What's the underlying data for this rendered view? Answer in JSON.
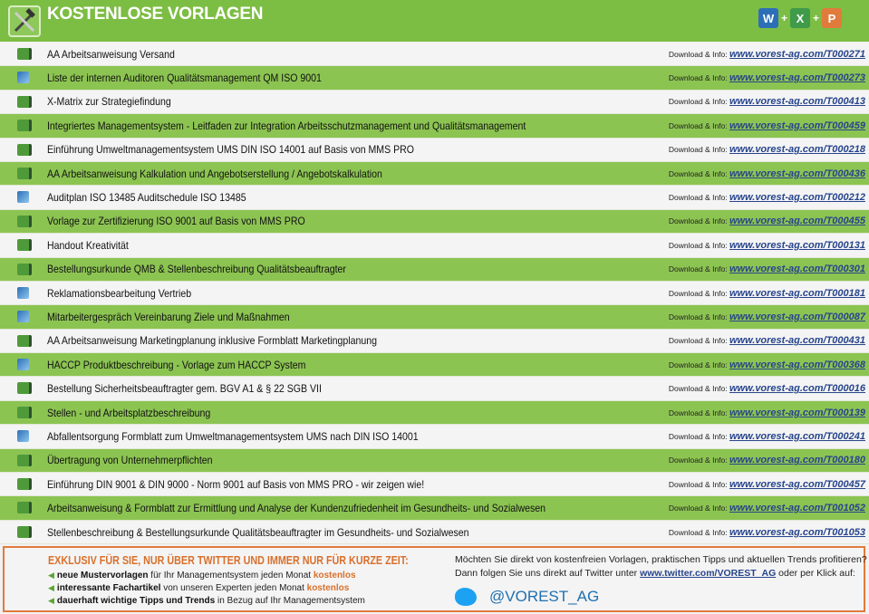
{
  "header": {
    "title": "KOSTENLOSE VORLAGEN",
    "logo_icon": "tools-icon",
    "apps": [
      {
        "icon": "word-icon",
        "letter": "W",
        "color": "#2c6fb7"
      },
      {
        "icon": "excel-icon",
        "letter": "X",
        "color": "#3f9a4a"
      },
      {
        "icon": "powerpoint-icon",
        "letter": "P",
        "color": "#e07b3c"
      }
    ],
    "plus": "+"
  },
  "download_label": "Download & Info:",
  "rows": [
    {
      "name": "AA Arbeitsanweisung Versand",
      "url": "www.vorest-ag.com/T000271",
      "icon": "xls"
    },
    {
      "name": "Liste der internen Auditoren Qualitätsmanagement QM ISO 9001",
      "url": "www.vorest-ag.com/T000273",
      "icon": "doc"
    },
    {
      "name": "X-Matrix zur Strategiefindung",
      "url": "www.vorest-ag.com/T000413",
      "icon": "xls"
    },
    {
      "name": "Integriertes Managementsystem - Leitfaden zur Integration Arbeitsschutzmanagement und Qualitätsmanagement",
      "url": "www.vorest-ag.com/T000459",
      "icon": "xls"
    },
    {
      "name": "Einführung Umweltmanagementsystem UMS DIN ISO 14001 auf Basis von MMS PRO",
      "url": "www.vorest-ag.com/T000218",
      "icon": "xls"
    },
    {
      "name": "AA Arbeitsanweisung Kalkulation und Angebotserstellung / Angebotskalkulation",
      "url": "www.vorest-ag.com/T000436",
      "icon": "xls"
    },
    {
      "name": "Auditplan ISO 13485 Auditschedule ISO 13485",
      "url": "www.vorest-ag.com/T000212",
      "icon": "doc"
    },
    {
      "name": "Vorlage zur Zertifizierung ISO 9001 auf Basis von MMS PRO",
      "url": "www.vorest-ag.com/T000455",
      "icon": "xls"
    },
    {
      "name": "Handout Kreativität",
      "url": "www.vorest-ag.com/T000131",
      "icon": "xls"
    },
    {
      "name": "Bestellungsurkunde QMB & Stellenbeschreibung Qualitätsbeauftragter",
      "url": "www.vorest-ag.com/T000301",
      "icon": "xls"
    },
    {
      "name": "Reklamationsbearbeitung Vertrieb",
      "url": "www.vorest-ag.com/T000181",
      "icon": "doc"
    },
    {
      "name": "Mitarbeitergespräch Vereinbarung Ziele und Maßnahmen",
      "url": "www.vorest-ag.com/T000087",
      "icon": "doc"
    },
    {
      "name": "AA Arbeitsanweisung Marketingplanung inklusive Formblatt Marketingplanung",
      "url": "www.vorest-ag.com/T000431",
      "icon": "xls"
    },
    {
      "name": "HACCP Produktbeschreibung - Vorlage zum HACCP System",
      "url": "www.vorest-ag.com/T000368",
      "icon": "doc"
    },
    {
      "name": "Bestellung Sicherheitsbeauftragter gem. BGV A1 & § 22 SGB VII",
      "url": "www.vorest-ag.com/T000016",
      "icon": "xls"
    },
    {
      "name": "Stellen - und Arbeitsplatzbeschreibung",
      "url": "www.vorest-ag.com/T000139",
      "icon": "xls"
    },
    {
      "name": "Abfallentsorgung Formblatt zum Umweltmanagementsystem UMS nach DIN ISO 14001",
      "url": "www.vorest-ag.com/T000241",
      "icon": "doc"
    },
    {
      "name": "Übertragung von Unternehmerpflichten",
      "url": "www.vorest-ag.com/T000180",
      "icon": "xls"
    },
    {
      "name": "Einführung DIN 9001 & DIN 9000 - Norm 9001 auf Basis von MMS PRO - wir zeigen wie!",
      "url": "www.vorest-ag.com/T000457",
      "icon": "xls"
    },
    {
      "name": "Arbeitsanweisung & Formblatt zur Ermittlung und Analyse der Kundenzufriedenheit im Gesundheits- und Sozialwesen",
      "url": "www.vorest-ag.com/T001052",
      "icon": "xls"
    },
    {
      "name": "Stellenbeschreibung & Bestellungsurkunde Qualitätsbeauftragter im Gesundheits- und Sozialwesen",
      "url": "www.vorest-ag.com/T001053",
      "icon": "xls"
    }
  ],
  "footer": {
    "title": "EXKLUSIV FÜR SIE, NUR ÜBER TWITTER UND IMMER NUR FÜR KURZE ZEIT:",
    "bullets": [
      {
        "bold": "neue Mustervorlagen",
        "text": " für Ihr Managementsystem jeden Monat ",
        "highlight": "kostenlos"
      },
      {
        "bold": "interessante Fachartikel",
        "text": " von unseren Experten jeden Monat ",
        "highlight": "kostenlos"
      },
      {
        "bold": "dauerhaft wichtige Tipps und Trends",
        "text": " in Bezug auf Ihr Managementsystem",
        "highlight": ""
      }
    ],
    "line1": "Möchten Sie direkt von kostenfreien Vorlagen, praktischen Tipps und aktuellen Trends profitieren?",
    "line2_pre": "Dann folgen Sie uns direkt auf Twitter unter ",
    "line2_link": "www.twitter.com/VOREST_AG",
    "line2_post": " oder per Klick auf:",
    "handle": "@VOREST_AG"
  },
  "colors": {
    "header_green": "#7cbd43",
    "row_green": "#8cc452",
    "accent_orange": "#e07b3c",
    "link_blue": "#27458c",
    "twitter_blue": "#1da1f2"
  }
}
